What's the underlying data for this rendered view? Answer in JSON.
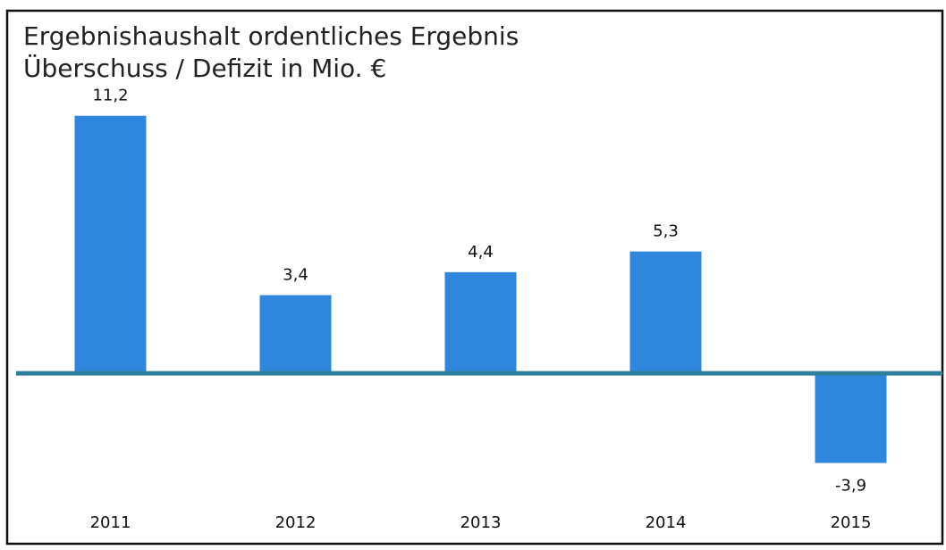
{
  "chart_data": {
    "type": "bar",
    "title": "Ergebnishaushalt ordentliches Ergebnis",
    "subtitle": "Überschuss / Defizit in Mio. €",
    "categories": [
      "2011",
      "2012",
      "2013",
      "2014",
      "2015"
    ],
    "values": [
      11.2,
      3.4,
      4.4,
      5.3,
      -3.9
    ],
    "value_labels": [
      "11,2",
      "3,4",
      "4,4",
      "5,3",
      "-3,9"
    ],
    "color": "#2f86dd",
    "ylim": [
      -4.5,
      11.5
    ]
  }
}
